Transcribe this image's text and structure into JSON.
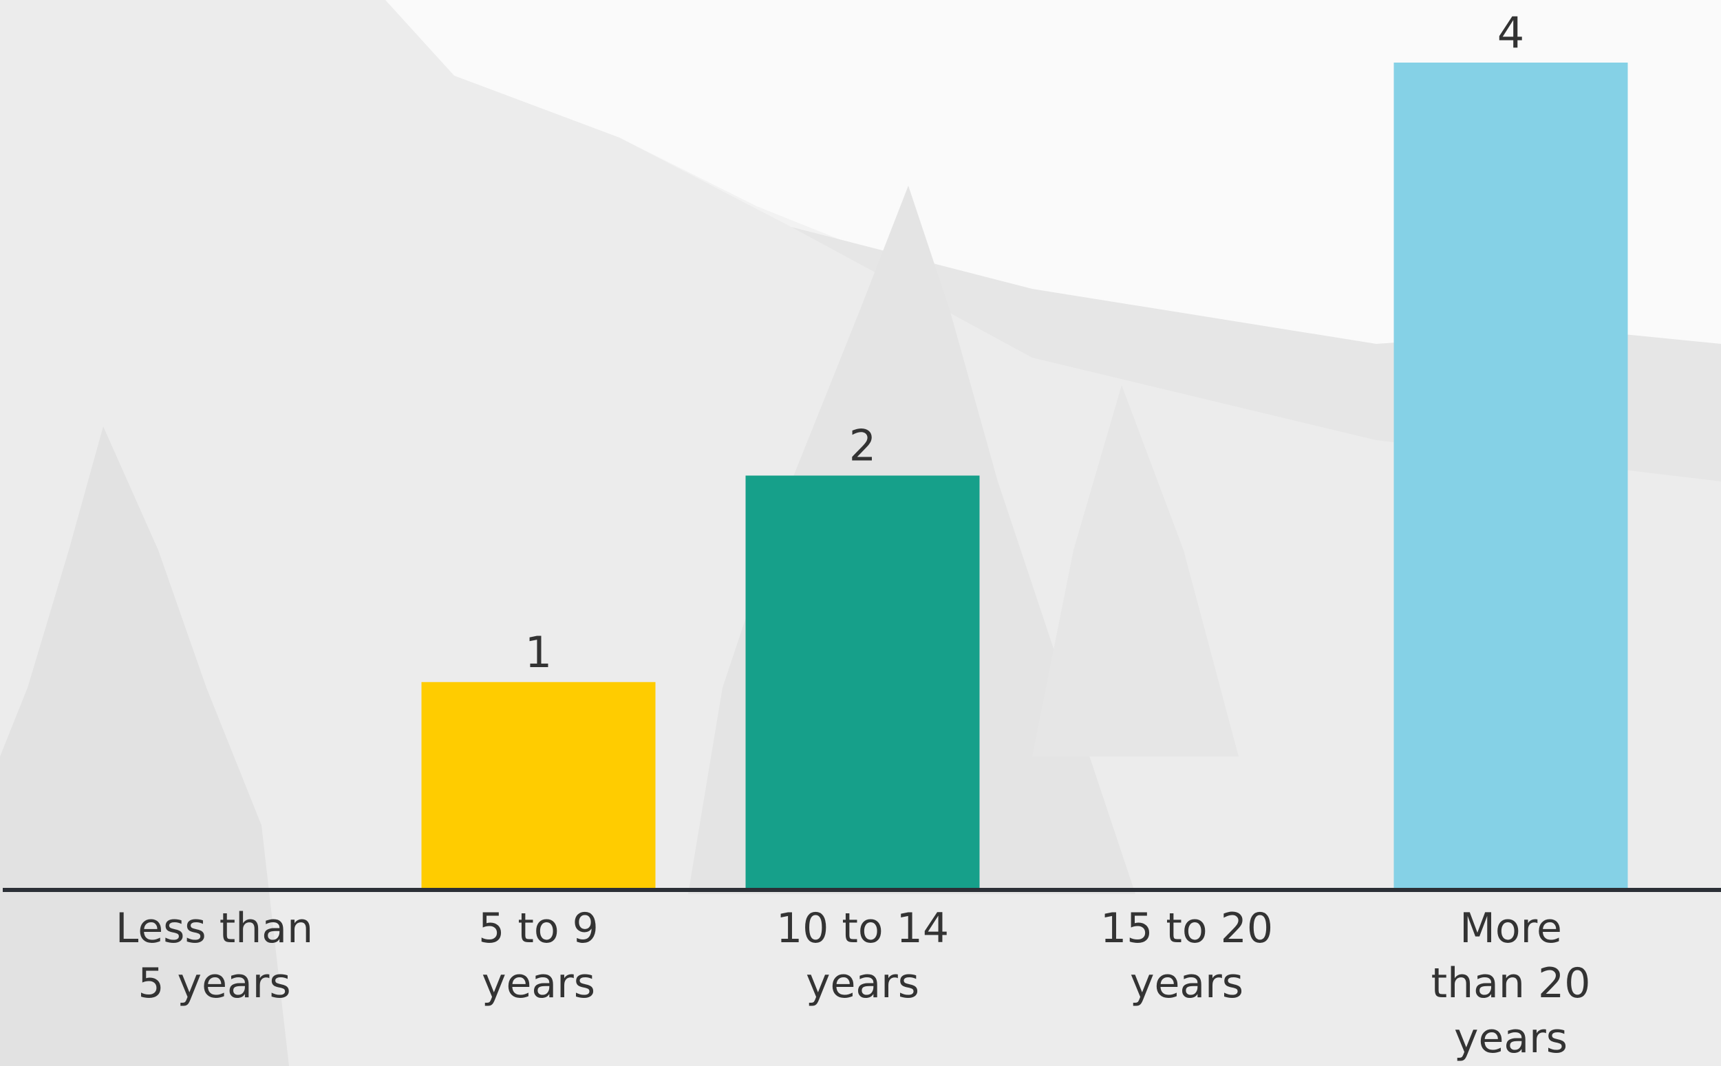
{
  "chart_data": {
    "type": "bar",
    "categories": [
      "Less than 5 years",
      "5 to 9 years",
      "10 to 14 years",
      "15 to 20 years",
      "More than 20 years"
    ],
    "values": [
      null,
      1,
      2,
      null,
      4
    ],
    "colors": [
      null,
      "#ffcc00",
      "#16a08a",
      null,
      "#85d1e6"
    ],
    "ylim": [
      0,
      4
    ]
  }
}
